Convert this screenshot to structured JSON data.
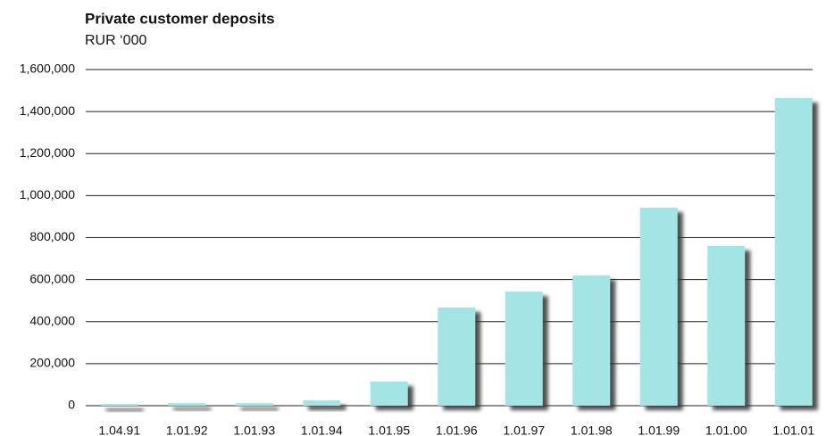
{
  "chart_data": {
    "type": "bar",
    "title": "Private customer deposits",
    "subtitle": "RUR ‘000",
    "categories": [
      "1.04.91",
      "1.01.92",
      "1.01.93",
      "1.01.94",
      "1.01.95",
      "1.01.96",
      "1.01.97",
      "1.01.98",
      "1.01.99",
      "1.01.00",
      "1.01.01"
    ],
    "values": [
      8000,
      12000,
      12000,
      25000,
      115000,
      467000,
      543000,
      620000,
      942000,
      760000,
      1464000
    ],
    "color": "#a3e4e4",
    "ylim": [
      0,
      1600000
    ],
    "yticks": [
      0,
      {
        "value": 200000,
        "label": "200,000"
      },
      {
        "value": 400000,
        "label": "400,000"
      },
      {
        "value": 600000,
        "label": "600,000"
      },
      {
        "value": 800000,
        "label": "800,000"
      },
      {
        "value": 1000000,
        "label": "1,000,000"
      },
      {
        "value": 1200000,
        "label": "1,200,000"
      },
      {
        "value": 1400000,
        "label": "1,400,000"
      },
      {
        "value": 1600000,
        "label": "1,600,000"
      }
    ],
    "grid": true
  }
}
